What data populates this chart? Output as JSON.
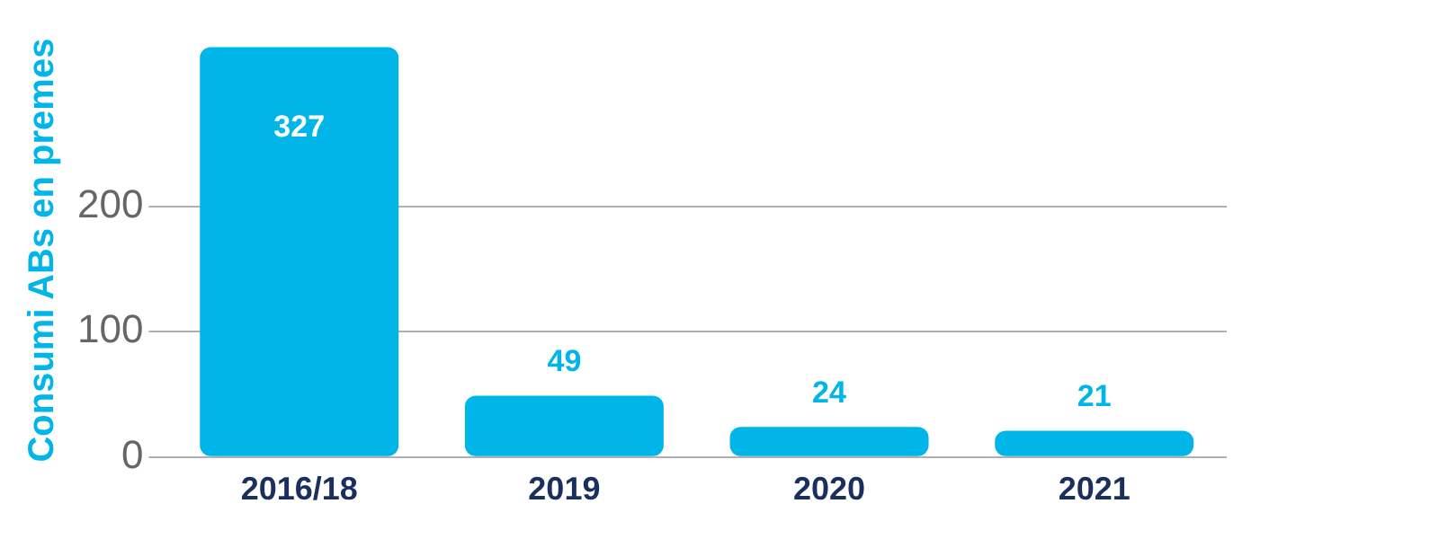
{
  "chart_data": {
    "type": "bar",
    "ylabel": "Consumi ABs en premes",
    "categories": [
      "2016/18",
      "2019",
      "2020",
      "2021"
    ],
    "values": [
      327,
      49,
      24,
      21
    ],
    "color": "#00b5e8",
    "ylim": [
      0,
      330
    ],
    "yticks": [
      0,
      100,
      200
    ],
    "grid": "y",
    "data_labels": true,
    "legend": false
  }
}
